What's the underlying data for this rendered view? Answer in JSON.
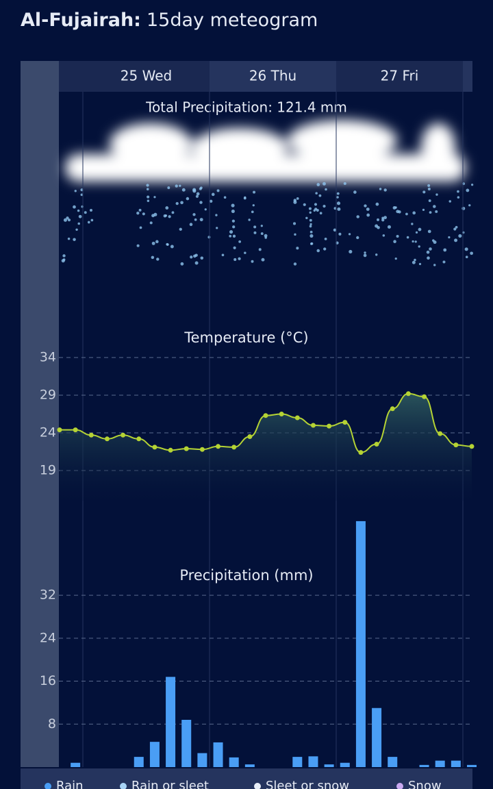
{
  "header": {
    "location": "Al-Fujairah:",
    "subtitle": "15day meteogram"
  },
  "days": [
    "25 Wed",
    "26 Thu",
    "27 Fri"
  ],
  "total_precipitation": "Total Precipitation: 121.4 mm",
  "chart_data": [
    {
      "type": "area",
      "title": "Temperature (°C)",
      "values": [
        24.4,
        24.4,
        23.7,
        23.2,
        23.7,
        23.2,
        22.1,
        21.7,
        21.9,
        21.8,
        22.2,
        22.1,
        23.5,
        26.3,
        26.5,
        26.0,
        25.0,
        24.9,
        25.4,
        21.4,
        22.5,
        27.2,
        29.2,
        28.8,
        23.9,
        22.4,
        22.2
      ],
      "color": "#b5d334",
      "ylim": [
        15,
        35
      ],
      "yticks": [
        34,
        29,
        24,
        19
      ],
      "grid": true
    },
    {
      "type": "bar",
      "title": "Precipitation (mm)",
      "values": [
        0,
        0.8,
        0,
        0,
        0,
        1.9,
        4.7,
        16.8,
        8.8,
        2.6,
        4.6,
        1.8,
        0.5,
        0,
        0,
        1.9,
        2.0,
        0.5,
        0.8,
        45.8,
        11.0,
        1.9,
        0,
        0.4,
        1.2,
        1.2,
        0.4
      ],
      "color": "#4a9ef5",
      "ylim": [
        0,
        47
      ],
      "yticks": [
        32,
        24,
        16,
        8
      ],
      "grid": true
    }
  ],
  "legend": [
    {
      "name": "Rain",
      "color": "#4a9ef5"
    },
    {
      "name": "Rain or sleet",
      "color": "#a8d4f7"
    },
    {
      "name": "Sleet or snow",
      "color": "#e8eef8"
    },
    {
      "name": "Snow",
      "color": "#c9a9f0"
    }
  ]
}
